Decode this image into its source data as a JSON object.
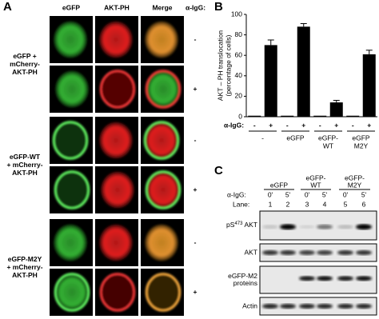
{
  "panel_a": {
    "label": "A",
    "columns": [
      "eGFP",
      "AKT-PH",
      "Merge"
    ],
    "treatment_label": "α-IgG:",
    "groups": [
      [
        "eGFP +",
        "mCherry-",
        "AKT-PH"
      ],
      [
        "eGFP-WT",
        "+ mCherry-",
        "AKT-PH"
      ],
      [
        "eGFP-M2Y",
        "+ mCherry-",
        "AKT-PH"
      ]
    ],
    "signs": [
      "-",
      "+",
      "-",
      "+",
      "-",
      "+"
    ]
  },
  "chart_data": {
    "type": "bar",
    "label": "B",
    "y_label_lines": [
      "AKT – PH translocation",
      "(percentage of cells)"
    ],
    "categories": [
      "-",
      "+",
      "-",
      "+",
      "-",
      "+",
      "-",
      "+"
    ],
    "values": [
      1,
      70,
      1,
      88,
      1,
      14,
      1,
      61
    ],
    "errors": [
      null,
      5,
      null,
      3,
      null,
      2,
      null,
      4
    ],
    "x_row_label": "α-IgG:",
    "groups": [
      [
        "-"
      ],
      [
        "eGFP"
      ],
      [
        "eGFP-",
        "WT"
      ],
      [
        "eGFP",
        "M2Y"
      ]
    ],
    "color": "#000000",
    "ylim": [
      0,
      100
    ],
    "yticks": [
      0,
      20,
      40,
      60,
      80,
      100
    ]
  },
  "panel_c": {
    "label": "C",
    "groups": [
      [
        "eGFP"
      ],
      [
        "eGFP-",
        "WT"
      ],
      [
        "eGFP-",
        "M2Y"
      ]
    ],
    "treatment_label": "α-IgG:",
    "times": [
      "0'",
      "5'",
      "0'",
      "5'",
      "0'",
      "5'"
    ],
    "lane_label": "Lane:",
    "lanes": [
      1,
      2,
      3,
      4,
      5,
      6
    ],
    "blots": [
      {
        "label": [
          "pS",
          "473",
          "AKT"
        ]
      },
      {
        "label": [
          "AKT"
        ]
      },
      {
        "label": [
          "eGFP-M2",
          "proteins"
        ]
      },
      {
        "label": [
          "Actin"
        ]
      }
    ]
  }
}
